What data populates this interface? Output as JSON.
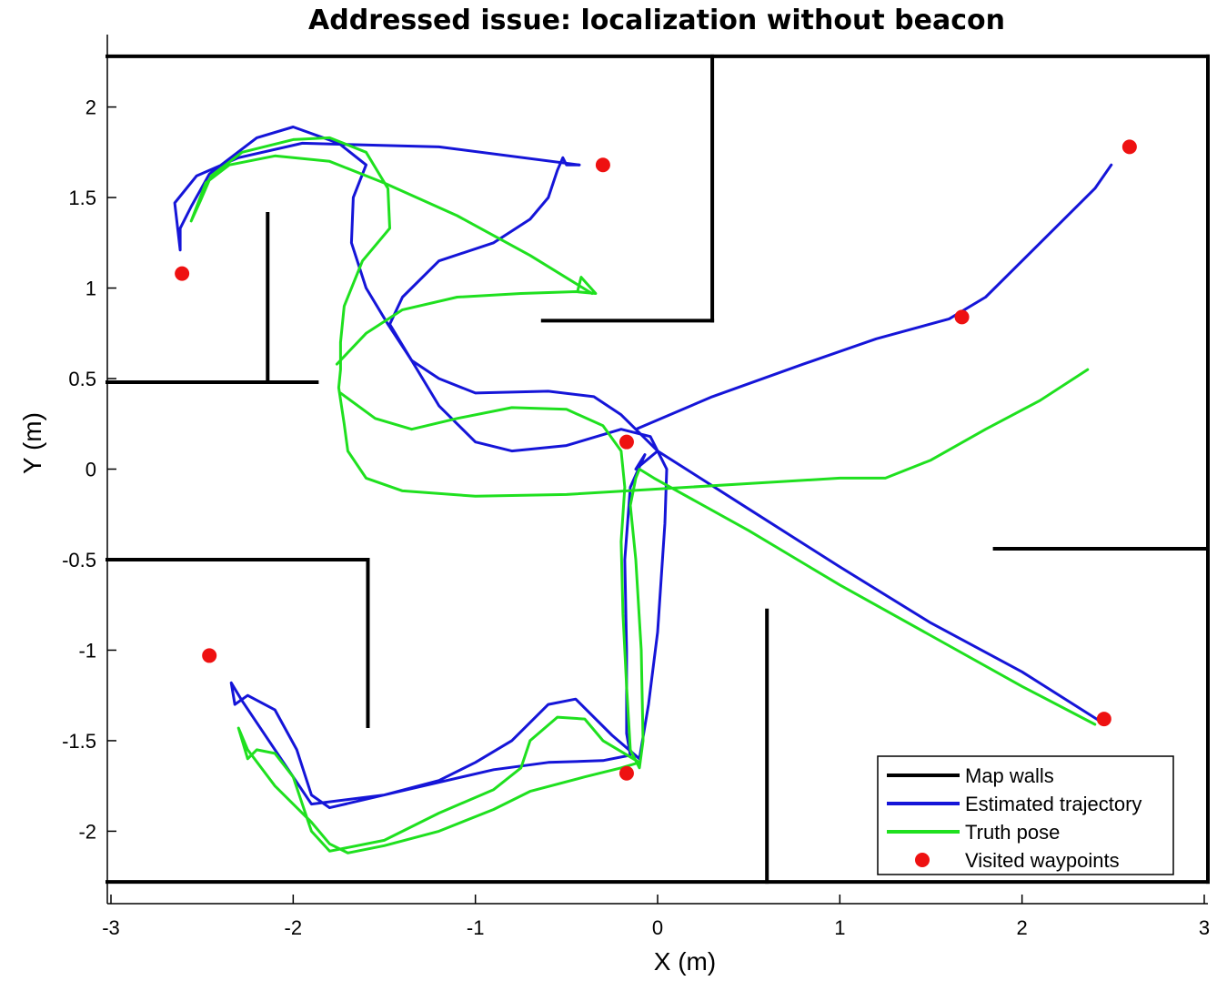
{
  "chart_data": {
    "type": "line",
    "title": "Addressed issue:  localization without beacon",
    "xlabel": "X (m)",
    "ylabel": "Y (m)",
    "xlim": [
      -3.02,
      3.02
    ],
    "ylim": [
      -2.4,
      2.4
    ],
    "xticks": [
      -3,
      -2,
      -1,
      0,
      1,
      2,
      3
    ],
    "xtick_labels": [
      "-3",
      "-2",
      "-1",
      "0",
      "1",
      "2",
      "3"
    ],
    "yticks": [
      -2,
      -1.5,
      -1,
      -0.5,
      0,
      0.5,
      1,
      1.5,
      2
    ],
    "ytick_labels": [
      "-2",
      "-1.5",
      "-1",
      "-0.5",
      "0",
      "0.5",
      "1",
      "1.5",
      "2"
    ],
    "grid": false,
    "legend_position": "bottom-right",
    "legend": [
      {
        "label": "Map walls",
        "kind": "line",
        "color": "#000000"
      },
      {
        "label": "Estimated trajectory",
        "kind": "line",
        "color": "#1515d8"
      },
      {
        "label": "Truth pose",
        "kind": "line",
        "color": "#1fe01f"
      },
      {
        "label": "Visited waypoints",
        "kind": "marker",
        "color": "#ee1111"
      }
    ],
    "walls": [
      [
        [
          -3.02,
          2.28
        ],
        [
          3.02,
          2.28
        ]
      ],
      [
        [
          -3.02,
          -2.28
        ],
        [
          3.02,
          -2.28
        ]
      ],
      [
        [
          3.02,
          2.28
        ],
        [
          3.02,
          -2.28
        ]
      ],
      [
        [
          0.3,
          2.28
        ],
        [
          0.3,
          0.82
        ]
      ],
      [
        [
          0.3,
          0.82
        ],
        [
          -0.63,
          0.82
        ]
      ],
      [
        [
          -2.14,
          1.41
        ],
        [
          -2.14,
          0.48
        ]
      ],
      [
        [
          -3.02,
          0.48
        ],
        [
          -1.87,
          0.48
        ]
      ],
      [
        [
          -3.02,
          -0.5
        ],
        [
          -1.59,
          -0.5
        ]
      ],
      [
        [
          -1.59,
          -0.5
        ],
        [
          -1.59,
          -1.42
        ]
      ],
      [
        [
          0.6,
          -0.78
        ],
        [
          0.6,
          -2.28
        ]
      ],
      [
        [
          1.85,
          -0.44
        ],
        [
          3.02,
          -0.44
        ]
      ]
    ],
    "waypoints": [
      {
        "x": -0.3,
        "y": 1.68
      },
      {
        "x": 2.59,
        "y": 1.78
      },
      {
        "x": -2.61,
        "y": 1.08
      },
      {
        "x": 1.67,
        "y": 0.84
      },
      {
        "x": -0.17,
        "y": 0.15
      },
      {
        "x": -2.46,
        "y": -1.03
      },
      {
        "x": 2.45,
        "y": -1.38
      },
      {
        "x": -0.17,
        "y": -1.68
      }
    ],
    "series": [
      {
        "name": "Estimated trajectory",
        "color": "#1515d8",
        "points": [
          [
            -0.43,
            1.68
          ],
          [
            -1.2,
            1.78
          ],
          [
            -1.95,
            1.8
          ],
          [
            -2.3,
            1.72
          ],
          [
            -2.53,
            1.62
          ],
          [
            -2.65,
            1.47
          ],
          [
            -2.62,
            1.21
          ],
          [
            -2.62,
            1.33
          ],
          [
            -2.56,
            1.45
          ],
          [
            -2.46,
            1.63
          ],
          [
            -2.2,
            1.83
          ],
          [
            -2.0,
            1.89
          ],
          [
            -1.75,
            1.8
          ],
          [
            -1.6,
            1.68
          ],
          [
            -1.67,
            1.5
          ],
          [
            -1.68,
            1.25
          ],
          [
            -1.6,
            1.0
          ],
          [
            -1.48,
            0.8
          ],
          [
            -1.35,
            0.6
          ],
          [
            -1.2,
            0.35
          ],
          [
            -1.0,
            0.15
          ],
          [
            -0.8,
            0.1
          ],
          [
            -0.5,
            0.13
          ],
          [
            -0.2,
            0.22
          ],
          [
            -0.04,
            0.18
          ],
          [
            0.05,
            0.0
          ],
          [
            0.04,
            -0.3
          ],
          [
            0.02,
            -0.6
          ],
          [
            0.0,
            -0.9
          ],
          [
            -0.05,
            -1.3
          ],
          [
            -0.1,
            -1.6
          ],
          [
            -0.25,
            -1.47
          ],
          [
            -0.45,
            -1.27
          ],
          [
            -0.6,
            -1.3
          ],
          [
            -0.8,
            -1.5
          ],
          [
            -1.0,
            -1.62
          ],
          [
            -1.2,
            -1.72
          ],
          [
            -1.5,
            -1.8
          ],
          [
            -1.8,
            -1.87
          ],
          [
            -1.9,
            -1.8
          ],
          [
            -1.98,
            -1.55
          ],
          [
            -2.1,
            -1.33
          ],
          [
            -2.25,
            -1.25
          ],
          [
            -2.32,
            -1.3
          ],
          [
            -2.34,
            -1.18
          ],
          [
            -2.28,
            -1.28
          ],
          [
            -2.1,
            -1.55
          ],
          [
            -1.9,
            -1.85
          ],
          [
            -1.5,
            -1.8
          ],
          [
            -1.2,
            -1.73
          ],
          [
            -0.9,
            -1.66
          ],
          [
            -0.6,
            -1.62
          ],
          [
            -0.3,
            -1.61
          ],
          [
            -0.15,
            -1.58
          ],
          [
            -0.17,
            -1.46
          ],
          [
            -0.17,
            -1.0
          ],
          [
            -0.18,
            -0.5
          ],
          [
            -0.15,
            -0.1
          ],
          [
            -0.07,
            0.08
          ],
          [
            -0.12,
            0.0
          ],
          [
            0.0,
            0.1
          ],
          [
            0.5,
            -0.22
          ],
          [
            1.0,
            -0.54
          ],
          [
            1.5,
            -0.85
          ],
          [
            2.0,
            -1.12
          ],
          [
            2.44,
            -1.4
          ]
        ]
      },
      {
        "name": "Estimated trajectory",
        "color": "#1515d8",
        "points": [
          [
            0.0,
            0.1
          ],
          [
            -0.1,
            0.2
          ],
          [
            -0.2,
            0.3
          ],
          [
            -0.35,
            0.4
          ],
          [
            -0.6,
            0.43
          ],
          [
            -1.0,
            0.42
          ],
          [
            -1.2,
            0.5
          ],
          [
            -1.35,
            0.6
          ],
          [
            -1.47,
            0.8
          ],
          [
            -1.4,
            0.95
          ],
          [
            -1.2,
            1.15
          ],
          [
            -0.9,
            1.25
          ],
          [
            -0.7,
            1.38
          ],
          [
            -0.6,
            1.5
          ],
          [
            -0.55,
            1.65
          ],
          [
            -0.52,
            1.72
          ],
          [
            -0.5,
            1.68
          ],
          [
            -0.43,
            1.68
          ]
        ]
      },
      {
        "name": "Estimated trajectory",
        "color": "#1515d8",
        "points": [
          [
            -0.12,
            0.22
          ],
          [
            0.3,
            0.4
          ],
          [
            0.8,
            0.58
          ],
          [
            1.2,
            0.72
          ],
          [
            1.6,
            0.83
          ],
          [
            1.8,
            0.95
          ],
          [
            2.1,
            1.25
          ],
          [
            2.4,
            1.55
          ],
          [
            2.49,
            1.68
          ]
        ]
      },
      {
        "name": "Truth pose",
        "color": "#1fe01f",
        "points": [
          [
            -0.36,
            0.97
          ],
          [
            -0.7,
            1.18
          ],
          [
            -1.1,
            1.4
          ],
          [
            -1.5,
            1.58
          ],
          [
            -1.8,
            1.7
          ],
          [
            -2.1,
            1.73
          ],
          [
            -2.35,
            1.68
          ],
          [
            -2.48,
            1.58
          ],
          [
            -2.56,
            1.37
          ],
          [
            -2.51,
            1.48
          ],
          [
            -2.45,
            1.62
          ],
          [
            -2.28,
            1.75
          ],
          [
            -2.0,
            1.82
          ],
          [
            -1.8,
            1.83
          ],
          [
            -1.6,
            1.75
          ],
          [
            -1.48,
            1.55
          ],
          [
            -1.47,
            1.33
          ],
          [
            -1.62,
            1.15
          ],
          [
            -1.72,
            0.9
          ],
          [
            -1.74,
            0.7
          ],
          [
            -1.74,
            0.55
          ],
          [
            -1.75,
            0.45
          ],
          [
            -1.72,
            0.25
          ],
          [
            -1.7,
            0.1
          ],
          [
            -1.6,
            -0.05
          ],
          [
            -1.4,
            -0.12
          ],
          [
            -1.0,
            -0.15
          ],
          [
            -0.5,
            -0.14
          ],
          [
            0.0,
            -0.11
          ],
          [
            0.5,
            -0.08
          ],
          [
            1.0,
            -0.05
          ],
          [
            1.25,
            -0.05
          ],
          [
            1.5,
            0.05
          ],
          [
            1.8,
            0.22
          ],
          [
            2.1,
            0.38
          ],
          [
            2.36,
            0.55
          ]
        ]
      },
      {
        "name": "Truth pose",
        "color": "#1fe01f",
        "points": [
          [
            -1.76,
            0.58
          ],
          [
            -1.6,
            0.75
          ],
          [
            -1.4,
            0.88
          ],
          [
            -1.1,
            0.95
          ],
          [
            -0.75,
            0.97
          ],
          [
            -0.45,
            0.98
          ],
          [
            -0.34,
            0.97
          ],
          [
            -0.42,
            1.06
          ],
          [
            -0.44,
            0.98
          ]
        ]
      },
      {
        "name": "Truth pose",
        "color": "#1fe01f",
        "points": [
          [
            -1.74,
            0.42
          ],
          [
            -1.55,
            0.28
          ],
          [
            -1.35,
            0.22
          ],
          [
            -1.1,
            0.28
          ],
          [
            -0.8,
            0.34
          ],
          [
            -0.5,
            0.33
          ],
          [
            -0.3,
            0.24
          ],
          [
            -0.2,
            0.1
          ],
          [
            -0.18,
            -0.1
          ],
          [
            -0.2,
            -0.4
          ],
          [
            -0.19,
            -0.8
          ],
          [
            -0.17,
            -1.2
          ],
          [
            -0.15,
            -1.55
          ],
          [
            -0.1,
            -1.65
          ],
          [
            -0.08,
            -1.5
          ],
          [
            -0.09,
            -1.0
          ],
          [
            -0.12,
            -0.5
          ],
          [
            -0.15,
            -0.2
          ],
          [
            -0.12,
            -0.05
          ],
          [
            -0.1,
            0.0
          ],
          [
            -0.02,
            -0.05
          ],
          [
            0.5,
            -0.34
          ],
          [
            1.0,
            -0.64
          ],
          [
            1.5,
            -0.92
          ],
          [
            2.0,
            -1.2
          ],
          [
            2.4,
            -1.41
          ]
        ]
      },
      {
        "name": "Truth pose",
        "color": "#1fe01f",
        "points": [
          [
            -0.1,
            -1.62
          ],
          [
            -0.3,
            -1.5
          ],
          [
            -0.4,
            -1.38
          ],
          [
            -0.55,
            -1.37
          ],
          [
            -0.7,
            -1.5
          ],
          [
            -0.75,
            -1.65
          ],
          [
            -0.9,
            -1.77
          ],
          [
            -1.2,
            -1.9
          ],
          [
            -1.5,
            -2.05
          ],
          [
            -1.8,
            -2.11
          ],
          [
            -1.9,
            -2.0
          ],
          [
            -2.0,
            -1.7
          ],
          [
            -2.1,
            -1.57
          ],
          [
            -2.2,
            -1.55
          ],
          [
            -2.25,
            -1.6
          ],
          [
            -2.3,
            -1.43
          ],
          [
            -2.25,
            -1.55
          ],
          [
            -2.1,
            -1.75
          ],
          [
            -1.9,
            -1.95
          ],
          [
            -1.8,
            -2.07
          ],
          [
            -1.7,
            -2.12
          ],
          [
            -1.5,
            -2.08
          ],
          [
            -1.2,
            -2.0
          ],
          [
            -0.9,
            -1.88
          ],
          [
            -0.7,
            -1.78
          ],
          [
            -0.4,
            -1.7
          ],
          [
            -0.2,
            -1.65
          ],
          [
            -0.1,
            -1.62
          ]
        ]
      }
    ]
  }
}
